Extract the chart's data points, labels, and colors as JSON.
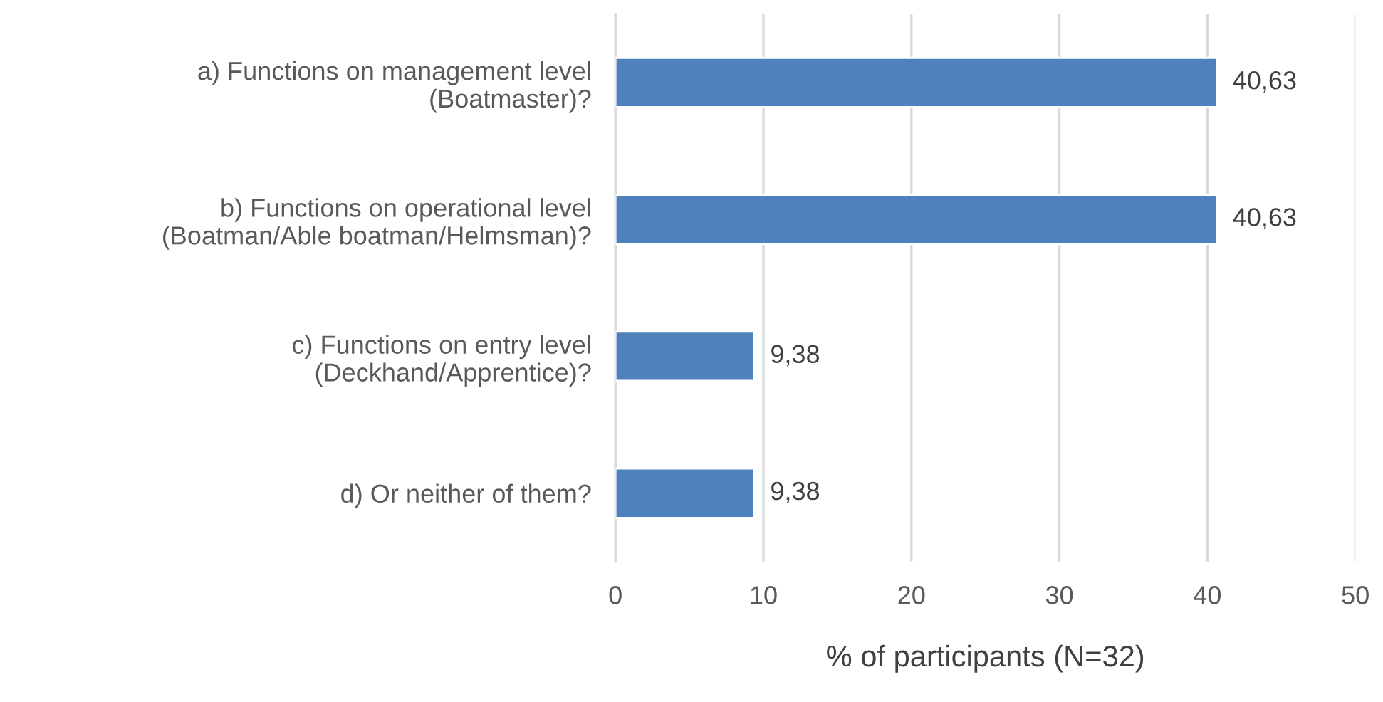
{
  "chart_data": {
    "type": "bar",
    "orientation": "horizontal",
    "xlabel": "% of participants (N=32)",
    "categories": [
      "a) Functions on management level\n(Boatmaster)?",
      "b) Functions on operational level\n(Boatman/Able boatman/Helmsman)?",
      "c) Functions on entry level\n(Deckhand/Apprentice)?",
      "d) Or neither of them?"
    ],
    "values": [
      40.63,
      40.63,
      9.38,
      9.38
    ],
    "value_labels": [
      "40,63",
      "40,63",
      "9,38",
      "9,38"
    ],
    "color": "#4f81bd",
    "xlim": [
      0,
      50
    ],
    "xticks": [
      0,
      10,
      20,
      30,
      40,
      50
    ],
    "grid": "x",
    "legend": false
  }
}
